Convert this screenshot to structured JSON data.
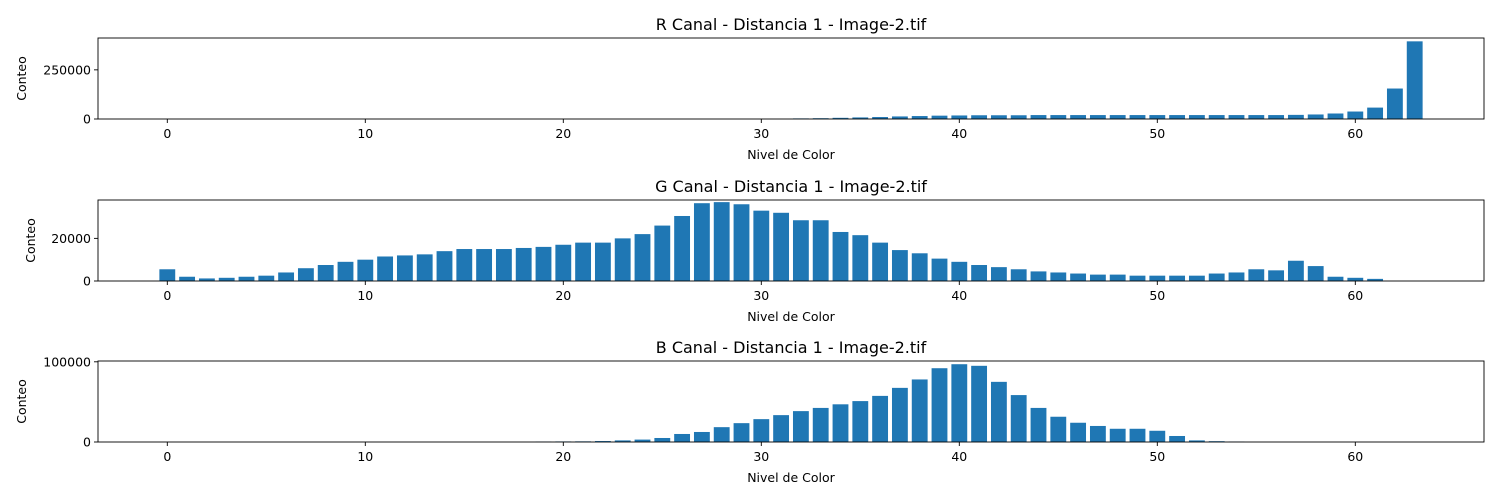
{
  "chart_data": [
    {
      "type": "bar",
      "title": "R Canal - Distancia 1 - Image-2.tif",
      "xlabel": "Nivel de Color",
      "ylabel": "Conteo",
      "xlim": [
        -3.5,
        66.5
      ],
      "ylim": [
        0,
        412000
      ],
      "xticks": [
        0,
        10,
        20,
        30,
        40,
        50,
        60
      ],
      "yticks": [
        0,
        250000
      ],
      "color": "#1f77b4",
      "x": [
        0,
        1,
        2,
        3,
        4,
        5,
        6,
        7,
        8,
        9,
        10,
        11,
        12,
        13,
        14,
        15,
        16,
        17,
        18,
        19,
        20,
        21,
        22,
        23,
        24,
        25,
        26,
        27,
        28,
        29,
        30,
        31,
        32,
        33,
        34,
        35,
        36,
        37,
        38,
        39,
        40,
        41,
        42,
        43,
        44,
        45,
        46,
        47,
        48,
        49,
        50,
        51,
        52,
        53,
        54,
        55,
        56,
        57,
        58,
        59,
        60,
        61,
        62,
        63
      ],
      "values": [
        0,
        0,
        0,
        0,
        0,
        0,
        0,
        0,
        0,
        0,
        0,
        0,
        0,
        0,
        0,
        0,
        0,
        0,
        0,
        0,
        0,
        0,
        0,
        0,
        0,
        0,
        0,
        0,
        0,
        0,
        0,
        0,
        3000,
        4000,
        6000,
        8000,
        10000,
        13000,
        15000,
        17000,
        18000,
        19000,
        19000,
        19000,
        20000,
        20000,
        20000,
        20000,
        20000,
        20000,
        20000,
        20000,
        20000,
        20000,
        20000,
        20000,
        20000,
        21000,
        23000,
        28000,
        38000,
        58000,
        155000,
        395000
      ]
    },
    {
      "type": "bar",
      "title": "G Canal - Distancia 1 - Image-2.tif",
      "xlabel": "Nivel de Color",
      "ylabel": "Conteo",
      "xlim": [
        -3.5,
        66.5
      ],
      "ylim": [
        0,
        38000
      ],
      "xticks": [
        0,
        10,
        20,
        30,
        40,
        50,
        60
      ],
      "yticks": [
        0,
        20000
      ],
      "color": "#1f77b4",
      "x": [
        0,
        1,
        2,
        3,
        4,
        5,
        6,
        7,
        8,
        9,
        10,
        11,
        12,
        13,
        14,
        15,
        16,
        17,
        18,
        19,
        20,
        21,
        22,
        23,
        24,
        25,
        26,
        27,
        28,
        29,
        30,
        31,
        32,
        33,
        34,
        35,
        36,
        37,
        38,
        39,
        40,
        41,
        42,
        43,
        44,
        45,
        46,
        47,
        48,
        49,
        50,
        51,
        52,
        53,
        54,
        55,
        56,
        57,
        58,
        59,
        60,
        61,
        62,
        63
      ],
      "values": [
        5500,
        2000,
        1200,
        1500,
        2000,
        2500,
        4000,
        6000,
        7500,
        9000,
        10000,
        11500,
        12000,
        12500,
        14000,
        15000,
        15000,
        15000,
        15500,
        16000,
        17000,
        18000,
        18000,
        20000,
        22000,
        26000,
        30500,
        36500,
        37000,
        36000,
        33000,
        32000,
        28500,
        28500,
        23000,
        21500,
        18000,
        14500,
        13000,
        10500,
        9000,
        7500,
        6500,
        5500,
        4500,
        4000,
        3500,
        3000,
        3000,
        2500,
        2500,
        2500,
        2500,
        3500,
        4000,
        5500,
        5000,
        9500,
        7000,
        2000,
        1500,
        1000,
        0,
        0
      ]
    },
    {
      "type": "bar",
      "title": "B Canal - Distancia 1 - Image-2.tif",
      "xlabel": "Nivel de Color",
      "ylabel": "Conteo",
      "xlim": [
        -3.5,
        66.5
      ],
      "ylim": [
        0,
        101000
      ],
      "xticks": [
        0,
        10,
        20,
        30,
        40,
        50,
        60
      ],
      "yticks": [
        0,
        100000
      ],
      "color": "#1f77b4",
      "x": [
        0,
        1,
        2,
        3,
        4,
        5,
        6,
        7,
        8,
        9,
        10,
        11,
        12,
        13,
        14,
        15,
        16,
        17,
        18,
        19,
        20,
        21,
        22,
        23,
        24,
        25,
        26,
        27,
        28,
        29,
        30,
        31,
        32,
        33,
        34,
        35,
        36,
        37,
        38,
        39,
        40,
        41,
        42,
        43,
        44,
        45,
        46,
        47,
        48,
        49,
        50,
        51,
        52,
        53,
        54,
        55,
        56,
        57,
        58,
        59,
        60,
        61,
        62,
        63
      ],
      "values": [
        0,
        0,
        0,
        0,
        0,
        0,
        0,
        0,
        0,
        0,
        0,
        0,
        0,
        0,
        0,
        0,
        0,
        0,
        0,
        500,
        700,
        800,
        1200,
        2000,
        3000,
        5000,
        10000,
        12500,
        18500,
        23500,
        28500,
        33500,
        38500,
        42500,
        47000,
        51000,
        57500,
        67500,
        78000,
        92000,
        97000,
        95000,
        75000,
        58500,
        42500,
        31500,
        24000,
        20000,
        16500,
        16500,
        14000,
        7500,
        2000,
        1000,
        500,
        0,
        0,
        0,
        0,
        0,
        0,
        0,
        0,
        0
      ]
    }
  ]
}
